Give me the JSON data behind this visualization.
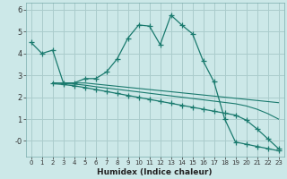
{
  "bg_color": "#cce8e8",
  "grid_color": "#aacccc",
  "line_color": "#1a7a6e",
  "xlabel": "Humidex (Indice chaleur)",
  "xlim": [
    -0.5,
    23.5
  ],
  "ylim": [
    -0.7,
    6.3
  ],
  "yticks": [
    0,
    1,
    2,
    3,
    4,
    5,
    6
  ],
  "ytick_labels": [
    "-0",
    "1",
    "2",
    "3",
    "4",
    "5",
    "6"
  ],
  "xticks": [
    0,
    1,
    2,
    3,
    4,
    5,
    6,
    7,
    8,
    9,
    10,
    11,
    12,
    13,
    14,
    15,
    16,
    17,
    18,
    19,
    20,
    21,
    22,
    23
  ],
  "curve1_x": [
    0,
    1,
    2,
    3,
    4,
    5,
    6,
    7,
    8,
    9,
    10,
    11,
    12,
    13,
    14,
    15,
    16,
    17,
    18,
    19,
    20,
    21,
    22,
    23
  ],
  "curve1_y": [
    4.5,
    4.0,
    4.15,
    2.65,
    2.65,
    2.85,
    2.85,
    3.15,
    3.75,
    4.7,
    5.3,
    5.25,
    4.4,
    5.75,
    5.3,
    4.9,
    3.65,
    2.7,
    1.0,
    -0.05,
    -0.15,
    -0.25,
    -0.35,
    -0.45
  ],
  "curve2_x": [
    2,
    3,
    4,
    5,
    6,
    7,
    8,
    9,
    10,
    11,
    12,
    13,
    14,
    15,
    16,
    17,
    18,
    19,
    20,
    21,
    22,
    23
  ],
  "curve2_y": [
    2.65,
    2.65,
    2.65,
    2.65,
    2.6,
    2.55,
    2.5,
    2.45,
    2.4,
    2.35,
    2.3,
    2.25,
    2.2,
    2.15,
    2.1,
    2.05,
    2.0,
    1.95,
    1.9,
    1.85,
    1.8,
    1.75
  ],
  "curve3_x": [
    2,
    3,
    4,
    5,
    6,
    7,
    8,
    9,
    10,
    11,
    12,
    13,
    14,
    15,
    16,
    17,
    18,
    19,
    20,
    21,
    22,
    23
  ],
  "curve3_y": [
    2.65,
    2.62,
    2.6,
    2.55,
    2.48,
    2.42,
    2.36,
    2.3,
    2.24,
    2.18,
    2.12,
    2.06,
    2.0,
    1.94,
    1.88,
    1.82,
    1.76,
    1.7,
    1.6,
    1.45,
    1.25,
    1.0
  ],
  "curve4_x": [
    2,
    3,
    4,
    5,
    6,
    7,
    8,
    9,
    10,
    11,
    12,
    13,
    14,
    15,
    16,
    17,
    18,
    19,
    20,
    21,
    22,
    23
  ],
  "curve4_y": [
    2.62,
    2.58,
    2.52,
    2.44,
    2.35,
    2.26,
    2.17,
    2.08,
    1.99,
    1.9,
    1.81,
    1.72,
    1.63,
    1.54,
    1.45,
    1.36,
    1.27,
    1.18,
    0.95,
    0.55,
    0.1,
    -0.35
  ]
}
